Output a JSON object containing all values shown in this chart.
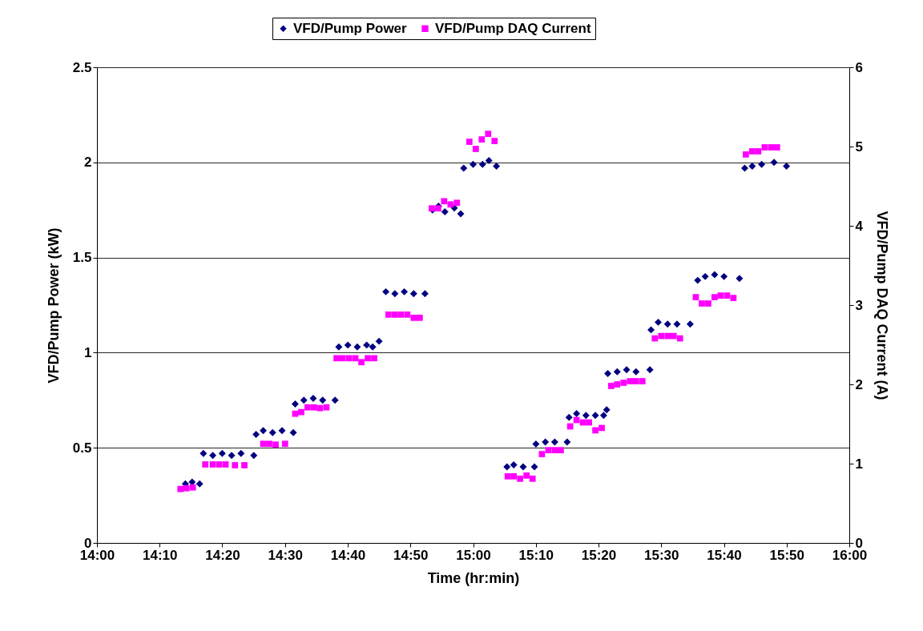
{
  "chart_data": {
    "type": "scatter",
    "xlabel": "Time (hr:min)",
    "ylabel": "VFD/Pump Power (kW)",
    "y2label": "VFD/Pump DAQ Current (A)",
    "xlim": [
      14,
      16
    ],
    "xticks": [
      {
        "value": 14,
        "label": "14:00"
      },
      {
        "value": 14.16667,
        "label": "14:10"
      },
      {
        "value": 14.33333,
        "label": "14:20"
      },
      {
        "value": 14.5,
        "label": "14:30"
      },
      {
        "value": 14.66667,
        "label": "14:40"
      },
      {
        "value": 14.83333,
        "label": "14:50"
      },
      {
        "value": 15,
        "label": "15:00"
      },
      {
        "value": 15.16667,
        "label": "15:10"
      },
      {
        "value": 15.33333,
        "label": "15:20"
      },
      {
        "value": 15.5,
        "label": "15:30"
      },
      {
        "value": 15.66667,
        "label": "15:40"
      },
      {
        "value": 15.83333,
        "label": "15:50"
      },
      {
        "value": 16,
        "label": "16:00"
      }
    ],
    "ylim": [
      0,
      2.5
    ],
    "yticks": [
      0,
      0.5,
      1,
      1.5,
      2,
      2.5
    ],
    "y2lim": [
      0,
      6
    ],
    "y2ticks": [
      0,
      1,
      2,
      3,
      4,
      5,
      6
    ],
    "grid": "y",
    "legend": "top",
    "series": [
      {
        "name": "VFD/Pump Power",
        "color": "#000080",
        "marker": "diamond",
        "x": [
          14.235,
          14.253,
          14.273,
          14.283,
          14.308,
          14.333,
          14.358,
          14.383,
          14.417,
          14.423,
          14.442,
          14.467,
          14.492,
          14.522,
          14.527,
          14.55,
          14.575,
          14.6,
          14.633,
          14.643,
          14.667,
          14.692,
          14.717,
          14.733,
          14.75,
          14.768,
          14.792,
          14.817,
          14.842,
          14.872,
          14.892,
          14.908,
          14.925,
          14.95,
          14.967,
          14.975,
          15.0,
          15.025,
          15.042,
          15.062,
          15.09,
          15.108,
          15.133,
          15.163,
          15.167,
          15.192,
          15.217,
          15.25,
          15.255,
          15.275,
          15.3,
          15.325,
          15.347,
          15.355,
          15.358,
          15.383,
          15.408,
          15.433,
          15.47,
          15.473,
          15.492,
          15.517,
          15.542,
          15.577,
          15.597,
          15.617,
          15.642,
          15.667,
          15.708,
          15.722,
          15.742,
          15.767,
          15.8,
          15.833
        ],
        "values": [
          0.31,
          0.32,
          0.31,
          0.47,
          0.46,
          0.47,
          0.46,
          0.47,
          0.46,
          0.57,
          0.59,
          0.58,
          0.59,
          0.58,
          0.73,
          0.75,
          0.76,
          0.75,
          0.75,
          1.03,
          1.04,
          1.03,
          1.04,
          1.03,
          1.06,
          1.32,
          1.31,
          1.32,
          1.31,
          1.31,
          1.75,
          1.77,
          1.74,
          1.76,
          1.73,
          1.97,
          1.99,
          1.99,
          2.01,
          1.98,
          0.4,
          0.41,
          0.4,
          0.4,
          0.52,
          0.53,
          0.53,
          0.53,
          0.66,
          0.68,
          0.67,
          0.67,
          0.67,
          0.7,
          0.89,
          0.9,
          0.91,
          0.9,
          0.91,
          1.12,
          1.16,
          1.15,
          1.15,
          1.15,
          1.38,
          1.4,
          1.41,
          1.4,
          1.39,
          1.97,
          1.98,
          1.99,
          2.0,
          1.98
        ]
      },
      {
        "name": "VFD/Pump DAQ Current",
        "color": "#ff00ff",
        "marker": "square",
        "axis": "y2",
        "x": [
          14.222,
          14.238,
          14.255,
          14.288,
          14.308,
          14.325,
          14.342,
          14.367,
          14.392,
          14.442,
          14.458,
          14.475,
          14.5,
          14.527,
          14.543,
          14.56,
          14.577,
          14.593,
          14.61,
          14.637,
          14.653,
          14.67,
          14.687,
          14.703,
          14.72,
          14.737,
          14.775,
          14.792,
          14.808,
          14.825,
          14.842,
          14.858,
          14.89,
          14.907,
          14.923,
          14.94,
          14.957,
          14.99,
          15.007,
          15.023,
          15.04,
          15.057,
          15.092,
          15.108,
          15.125,
          15.142,
          15.158,
          15.183,
          15.2,
          15.217,
          15.233,
          15.258,
          15.275,
          15.292,
          15.308,
          15.325,
          15.342,
          15.367,
          15.383,
          15.4,
          15.417,
          15.433,
          15.45,
          15.483,
          15.5,
          15.517,
          15.533,
          15.55,
          15.592,
          15.608,
          15.625,
          15.642,
          15.658,
          15.675,
          15.692,
          15.725,
          15.742,
          15.758,
          15.775,
          15.792,
          15.808
        ],
        "values": [
          0.68,
          0.69,
          0.7,
          0.99,
          0.99,
          0.99,
          0.99,
          0.98,
          0.98,
          1.25,
          1.25,
          1.24,
          1.25,
          1.63,
          1.65,
          1.71,
          1.71,
          1.7,
          1.71,
          2.33,
          2.33,
          2.33,
          2.33,
          2.28,
          2.33,
          2.33,
          2.88,
          2.88,
          2.88,
          2.88,
          2.84,
          2.84,
          4.22,
          4.22,
          4.31,
          4.27,
          4.29,
          5.06,
          4.97,
          5.09,
          5.16,
          5.07,
          0.84,
          0.84,
          0.81,
          0.85,
          0.81,
          1.12,
          1.17,
          1.17,
          1.17,
          1.47,
          1.55,
          1.52,
          1.52,
          1.42,
          1.45,
          1.98,
          2.0,
          2.02,
          2.04,
          2.04,
          2.04,
          2.58,
          2.61,
          2.61,
          2.61,
          2.58,
          3.1,
          3.02,
          3.02,
          3.1,
          3.12,
          3.12,
          3.09,
          4.9,
          4.94,
          4.94,
          4.99,
          4.99,
          4.99
        ]
      }
    ]
  }
}
